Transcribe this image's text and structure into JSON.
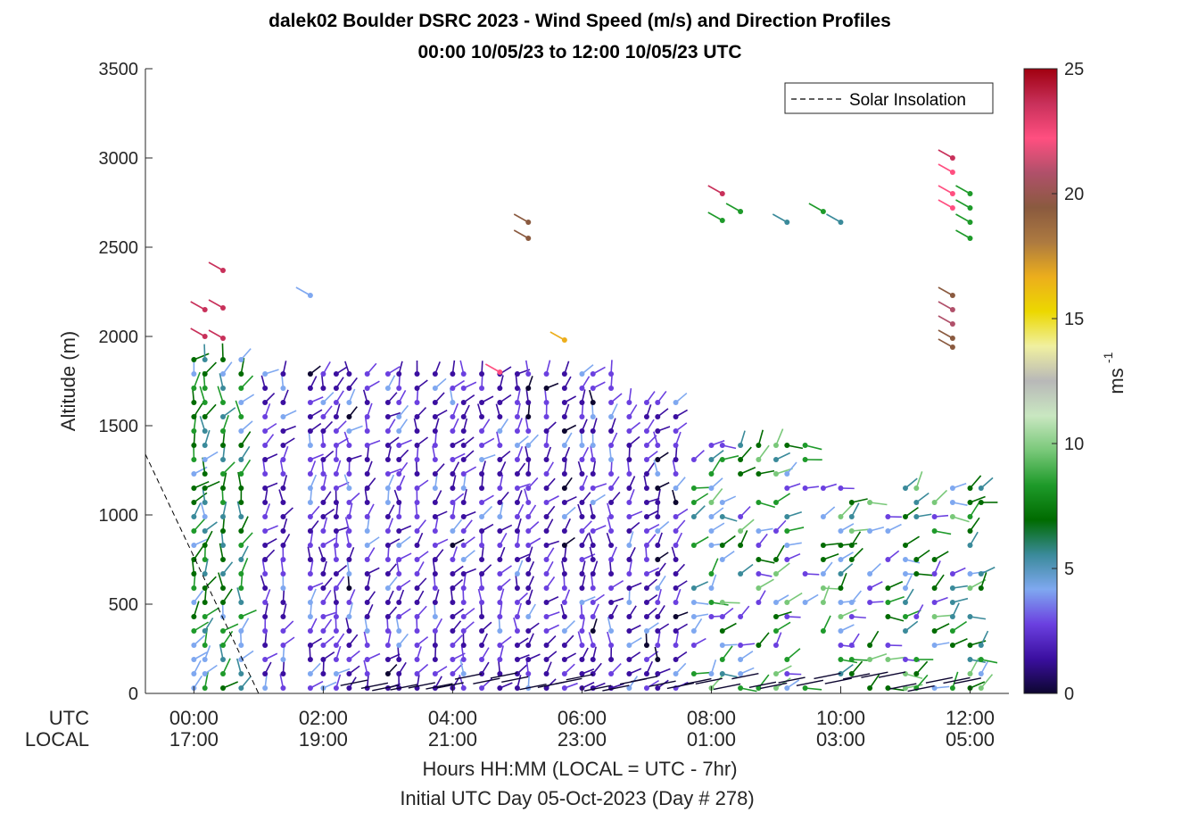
{
  "chart_data": {
    "type": "scatter",
    "title_line1": "dalek02 Boulder DSRC 2023 - Wind Speed (m/s) and Direction Profiles",
    "title_line2": "00:00 10/05/23 to 12:00 10/05/23  UTC",
    "ylabel": "Altitude (m)",
    "xlabel": "Hours HH:MM  (LOCAL = UTC - 7hr)",
    "xlabel2": "Initial UTC Day 05-Oct-2023 (Day # 278)",
    "row_label_utc": "UTC",
    "row_label_local": "LOCAL",
    "ylim": [
      0,
      3500
    ],
    "yticks": [
      "0",
      "500",
      "1000",
      "1500",
      "2000",
      "2500",
      "3000",
      "3500"
    ],
    "xlim": [
      -0.75,
      12.6
    ],
    "xticks_utc": [
      "00:00",
      "02:00",
      "04:00",
      "06:00",
      "08:00",
      "10:00",
      "12:00"
    ],
    "xticks_local": [
      "17:00",
      "19:00",
      "21:00",
      "23:00",
      "01:00",
      "03:00",
      "05:00"
    ],
    "colorbar": {
      "label": "ms",
      "label_exp": "-1",
      "range": [
        0,
        25
      ],
      "ticks": [
        "0",
        "5",
        "10",
        "15",
        "20",
        "25"
      ],
      "colors": [
        "#0d0630",
        "#3b0fa0",
        "#6b40e0",
        "#7fa8f0",
        "#3a8a9a",
        "#006b00",
        "#1e9a2a",
        "#79c879",
        "#c9e7c1",
        "#b8b8b8",
        "#f0f0a0",
        "#ecd800",
        "#ecae1c",
        "#ad7a40",
        "#8a5a3f",
        "#b0506a",
        "#ff4f80",
        "#c8305a",
        "#a00010"
      ]
    },
    "legend": {
      "entries": [
        "Solar Insolation"
      ],
      "placement": "top-right"
    },
    "solar_insolation": {
      "x": [
        -0.75,
        1.0
      ],
      "y": [
        1340,
        0
      ]
    },
    "barbs": {
      "times": [
        0.0,
        0.17,
        0.45,
        0.73,
        1.1,
        1.38,
        1.8,
        2.0,
        2.2,
        2.4,
        2.68,
        3.0,
        3.17,
        3.45,
        3.73,
        4.0,
        4.17,
        4.45,
        4.73,
        5.0,
        5.17,
        5.45,
        5.73,
        6.0,
        6.17,
        6.45,
        6.73,
        7.0,
        7.17,
        7.45,
        7.73,
        8.0,
        8.17,
        8.45,
        8.73,
        9.0,
        9.17,
        9.45,
        9.73,
        10.0,
        10.17,
        10.45,
        10.73,
        11.0,
        11.17,
        11.45,
        11.73,
        12.0,
        12.17
      ],
      "note": "wind barbs at 80 m vertical spacing"
    }
  }
}
